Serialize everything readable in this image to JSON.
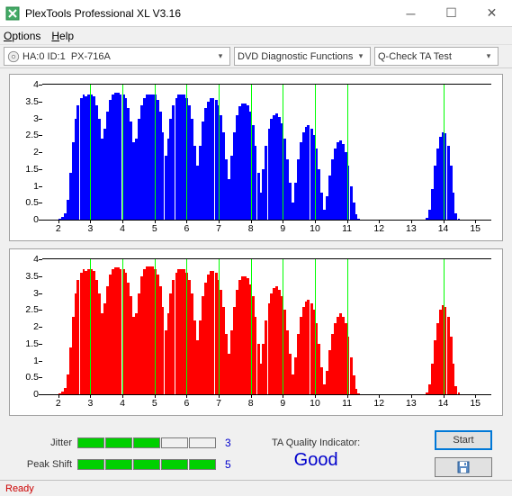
{
  "window": {
    "title": "PlexTools Professional XL V3.16"
  },
  "menu": {
    "options": "Options",
    "help": "Help"
  },
  "toolbar": {
    "drive": {
      "prefix": "HA:0 ID:1",
      "model": "PX-716A"
    },
    "mode": "DVD Diagnostic Functions",
    "test": "Q-Check TA Test"
  },
  "charts": {
    "ylim": [
      0,
      4
    ],
    "yTicks": [
      0,
      0.5,
      1,
      1.5,
      2,
      2.5,
      3,
      3.5,
      4
    ],
    "xlim": [
      1.5,
      15.5
    ],
    "xTicks": [
      2,
      3,
      4,
      5,
      6,
      7,
      8,
      9,
      10,
      11,
      12,
      13,
      14,
      15
    ],
    "xGrid": [
      3,
      4,
      5,
      6,
      7,
      8,
      9,
      10,
      11,
      14
    ],
    "barWidth": 0.082,
    "top": {
      "color": "#0000ff",
      "points": [
        [
          2.05,
          0.03
        ],
        [
          2.13,
          0.08
        ],
        [
          2.21,
          0.2
        ],
        [
          2.3,
          0.6
        ],
        [
          2.38,
          1.4
        ],
        [
          2.46,
          2.3
        ],
        [
          2.54,
          3.0
        ],
        [
          2.62,
          3.4
        ],
        [
          2.71,
          3.6
        ],
        [
          2.79,
          3.7
        ],
        [
          2.87,
          3.65
        ],
        [
          2.95,
          3.7
        ],
        [
          3.04,
          3.7
        ],
        [
          3.12,
          3.65
        ],
        [
          3.2,
          3.4
        ],
        [
          3.28,
          3.0
        ],
        [
          3.37,
          2.4
        ],
        [
          3.45,
          2.7
        ],
        [
          3.53,
          3.2
        ],
        [
          3.61,
          3.55
        ],
        [
          3.7,
          3.7
        ],
        [
          3.78,
          3.75
        ],
        [
          3.86,
          3.75
        ],
        [
          3.94,
          3.7
        ],
        [
          4.03,
          3.72
        ],
        [
          4.11,
          3.6
        ],
        [
          4.19,
          3.3
        ],
        [
          4.27,
          2.9
        ],
        [
          4.36,
          2.3
        ],
        [
          4.44,
          2.4
        ],
        [
          4.52,
          3.0
        ],
        [
          4.6,
          3.4
        ],
        [
          4.69,
          3.6
        ],
        [
          4.77,
          3.7
        ],
        [
          4.85,
          3.72
        ],
        [
          4.93,
          3.7
        ],
        [
          5.02,
          3.7
        ],
        [
          5.1,
          3.55
        ],
        [
          5.18,
          3.2
        ],
        [
          5.26,
          2.6
        ],
        [
          5.35,
          1.9
        ],
        [
          5.43,
          2.4
        ],
        [
          5.51,
          3.0
        ],
        [
          5.59,
          3.4
        ],
        [
          5.68,
          3.6
        ],
        [
          5.76,
          3.7
        ],
        [
          5.84,
          3.7
        ],
        [
          5.92,
          3.7
        ],
        [
          6.01,
          3.6
        ],
        [
          6.09,
          3.4
        ],
        [
          6.17,
          3.0
        ],
        [
          6.25,
          2.2
        ],
        [
          6.34,
          1.6
        ],
        [
          6.42,
          2.2
        ],
        [
          6.5,
          2.9
        ],
        [
          6.58,
          3.3
        ],
        [
          6.67,
          3.5
        ],
        [
          6.75,
          3.6
        ],
        [
          6.83,
          3.6
        ],
        [
          6.92,
          3.55
        ],
        [
          7.0,
          3.4
        ],
        [
          7.08,
          3.1
        ],
        [
          7.16,
          2.6
        ],
        [
          7.25,
          1.8
        ],
        [
          7.33,
          1.2
        ],
        [
          7.41,
          1.9
        ],
        [
          7.49,
          2.6
        ],
        [
          7.58,
          3.1
        ],
        [
          7.66,
          3.35
        ],
        [
          7.74,
          3.45
        ],
        [
          7.82,
          3.45
        ],
        [
          7.91,
          3.4
        ],
        [
          7.99,
          3.2
        ],
        [
          8.07,
          2.8
        ],
        [
          8.15,
          2.2
        ],
        [
          8.24,
          1.4
        ],
        [
          8.32,
          0.8
        ],
        [
          8.4,
          1.5
        ],
        [
          8.48,
          2.2
        ],
        [
          8.57,
          2.7
        ],
        [
          8.65,
          3.0
        ],
        [
          8.73,
          3.1
        ],
        [
          8.81,
          3.15
        ],
        [
          8.9,
          3.05
        ],
        [
          8.98,
          2.85
        ],
        [
          9.06,
          2.4
        ],
        [
          9.14,
          1.8
        ],
        [
          9.23,
          1.1
        ],
        [
          9.31,
          0.5
        ],
        [
          9.39,
          1.1
        ],
        [
          9.47,
          1.8
        ],
        [
          9.56,
          2.3
        ],
        [
          9.64,
          2.6
        ],
        [
          9.72,
          2.75
        ],
        [
          9.8,
          2.8
        ],
        [
          9.89,
          2.7
        ],
        [
          9.97,
          2.5
        ],
        [
          10.05,
          2.1
        ],
        [
          10.13,
          1.5
        ],
        [
          10.22,
          0.8
        ],
        [
          10.3,
          0.3
        ],
        [
          10.38,
          0.7
        ],
        [
          10.46,
          1.3
        ],
        [
          10.55,
          1.8
        ],
        [
          10.63,
          2.1
        ],
        [
          10.71,
          2.3
        ],
        [
          10.8,
          2.35
        ],
        [
          10.88,
          2.25
        ],
        [
          10.96,
          2.0
        ],
        [
          11.04,
          1.6
        ],
        [
          11.13,
          1.0
        ],
        [
          11.21,
          0.5
        ],
        [
          11.29,
          0.15
        ],
        [
          11.37,
          0.04
        ],
        [
          13.5,
          0.05
        ],
        [
          13.58,
          0.3
        ],
        [
          13.66,
          0.9
        ],
        [
          13.74,
          1.6
        ],
        [
          13.83,
          2.1
        ],
        [
          13.91,
          2.45
        ],
        [
          13.99,
          2.6
        ],
        [
          14.07,
          2.55
        ],
        [
          14.16,
          2.2
        ],
        [
          14.24,
          1.6
        ],
        [
          14.32,
          0.8
        ],
        [
          14.4,
          0.2
        ],
        [
          14.49,
          0.04
        ]
      ]
    },
    "bottom": {
      "color": "#ff0000",
      "points": [
        [
          2.05,
          0.03
        ],
        [
          2.13,
          0.08
        ],
        [
          2.21,
          0.2
        ],
        [
          2.3,
          0.6
        ],
        [
          2.38,
          1.4
        ],
        [
          2.46,
          2.3
        ],
        [
          2.54,
          3.0
        ],
        [
          2.62,
          3.4
        ],
        [
          2.71,
          3.6
        ],
        [
          2.79,
          3.7
        ],
        [
          2.87,
          3.65
        ],
        [
          2.95,
          3.7
        ],
        [
          3.04,
          3.7
        ],
        [
          3.12,
          3.65
        ],
        [
          3.2,
          3.4
        ],
        [
          3.28,
          3.0
        ],
        [
          3.37,
          2.4
        ],
        [
          3.45,
          2.7
        ],
        [
          3.53,
          3.2
        ],
        [
          3.61,
          3.55
        ],
        [
          3.7,
          3.7
        ],
        [
          3.78,
          3.75
        ],
        [
          3.86,
          3.75
        ],
        [
          3.94,
          3.7
        ],
        [
          4.03,
          3.72
        ],
        [
          4.11,
          3.6
        ],
        [
          4.19,
          3.3
        ],
        [
          4.27,
          2.9
        ],
        [
          4.36,
          2.3
        ],
        [
          4.44,
          2.4
        ],
        [
          4.52,
          3.0
        ],
        [
          4.6,
          3.5
        ],
        [
          4.69,
          3.7
        ],
        [
          4.77,
          3.78
        ],
        [
          4.85,
          3.8
        ],
        [
          4.93,
          3.78
        ],
        [
          5.02,
          3.72
        ],
        [
          5.1,
          3.55
        ],
        [
          5.18,
          3.2
        ],
        [
          5.26,
          2.6
        ],
        [
          5.35,
          1.9
        ],
        [
          5.43,
          2.4
        ],
        [
          5.51,
          3.0
        ],
        [
          5.59,
          3.4
        ],
        [
          5.68,
          3.6
        ],
        [
          5.76,
          3.7
        ],
        [
          5.84,
          3.72
        ],
        [
          5.92,
          3.72
        ],
        [
          6.01,
          3.6
        ],
        [
          6.09,
          3.4
        ],
        [
          6.17,
          3.0
        ],
        [
          6.25,
          2.2
        ],
        [
          6.34,
          1.6
        ],
        [
          6.42,
          2.2
        ],
        [
          6.5,
          2.9
        ],
        [
          6.58,
          3.3
        ],
        [
          6.67,
          3.55
        ],
        [
          6.75,
          3.65
        ],
        [
          6.83,
          3.65
        ],
        [
          6.92,
          3.6
        ],
        [
          7.0,
          3.4
        ],
        [
          7.08,
          3.1
        ],
        [
          7.16,
          2.6
        ],
        [
          7.25,
          1.8
        ],
        [
          7.33,
          1.2
        ],
        [
          7.41,
          1.9
        ],
        [
          7.49,
          2.6
        ],
        [
          7.58,
          3.1
        ],
        [
          7.66,
          3.4
        ],
        [
          7.74,
          3.5
        ],
        [
          7.82,
          3.5
        ],
        [
          7.91,
          3.45
        ],
        [
          7.99,
          3.25
        ],
        [
          8.07,
          2.9
        ],
        [
          8.15,
          2.3
        ],
        [
          8.24,
          1.5
        ],
        [
          8.32,
          0.9
        ],
        [
          8.4,
          1.5
        ],
        [
          8.48,
          2.2
        ],
        [
          8.57,
          2.7
        ],
        [
          8.65,
          3.0
        ],
        [
          8.73,
          3.15
        ],
        [
          8.81,
          3.2
        ],
        [
          8.9,
          3.1
        ],
        [
          8.98,
          2.9
        ],
        [
          9.06,
          2.5
        ],
        [
          9.14,
          1.9
        ],
        [
          9.23,
          1.2
        ],
        [
          9.31,
          0.6
        ],
        [
          9.39,
          1.1
        ],
        [
          9.47,
          1.8
        ],
        [
          9.56,
          2.3
        ],
        [
          9.64,
          2.6
        ],
        [
          9.72,
          2.75
        ],
        [
          9.8,
          2.8
        ],
        [
          9.89,
          2.7
        ],
        [
          9.97,
          2.5
        ],
        [
          10.05,
          2.1
        ],
        [
          10.13,
          1.5
        ],
        [
          10.22,
          0.8
        ],
        [
          10.3,
          0.3
        ],
        [
          10.38,
          0.7
        ],
        [
          10.46,
          1.3
        ],
        [
          10.55,
          1.8
        ],
        [
          10.63,
          2.1
        ],
        [
          10.71,
          2.3
        ],
        [
          10.8,
          2.4
        ],
        [
          10.88,
          2.3
        ],
        [
          10.96,
          2.1
        ],
        [
          11.04,
          1.7
        ],
        [
          11.13,
          1.1
        ],
        [
          11.21,
          0.55
        ],
        [
          11.29,
          0.15
        ],
        [
          11.37,
          0.04
        ],
        [
          13.5,
          0.05
        ],
        [
          13.58,
          0.3
        ],
        [
          13.66,
          0.9
        ],
        [
          13.74,
          1.6
        ],
        [
          13.83,
          2.1
        ],
        [
          13.91,
          2.5
        ],
        [
          13.99,
          2.65
        ],
        [
          14.07,
          2.6
        ],
        [
          14.16,
          2.3
        ],
        [
          14.24,
          1.7
        ],
        [
          14.32,
          0.9
        ],
        [
          14.4,
          0.25
        ],
        [
          14.49,
          0.05
        ]
      ]
    }
  },
  "meters": {
    "jitter": {
      "label": "Jitter",
      "value": 3,
      "max": 5
    },
    "peakShift": {
      "label": "Peak Shift",
      "value": 5,
      "max": 5
    }
  },
  "quality": {
    "label": "TA Quality Indicator:",
    "value": "Good"
  },
  "buttons": {
    "start": "Start"
  },
  "status": "Ready"
}
